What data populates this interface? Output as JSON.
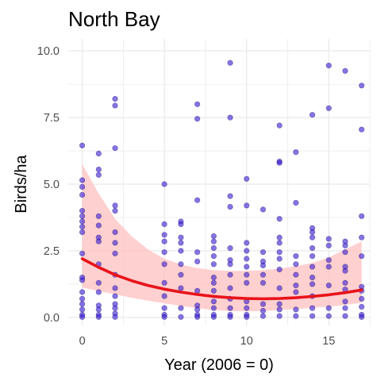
{
  "chart_data": {
    "type": "scatter",
    "title": "North Bay",
    "xlabel": "Year (2006 = 0)",
    "ylabel": "Birds/ha",
    "xlim": [
      -0.85,
      17.5
    ],
    "ylim": [
      -0.3,
      10.45
    ],
    "x_ticks": [
      0,
      5,
      10,
      15
    ],
    "x_tick_labels": [
      "0",
      "5",
      "10",
      "15"
    ],
    "y_ticks": [
      0,
      2.5,
      5,
      7.5,
      10
    ],
    "y_tick_labels": [
      "0.0",
      "2.5",
      "5.0",
      "7.5",
      "10.0"
    ],
    "x_minor": [
      2.5,
      7.5,
      12.5,
      17.5
    ],
    "y_minor": [
      1.25,
      3.75,
      6.25,
      8.75
    ],
    "grid": true,
    "legend": "none",
    "colors": {
      "points": "#3a1fd1",
      "points_edge": "#1a0f7a",
      "trend": "#e8141b",
      "band": "#ffc0c0",
      "grid": "#ebebeb",
      "background": "#ffffff"
    },
    "points": [
      {
        "x": 0,
        "y": 6.45
      },
      {
        "x": 0,
        "y": 5.15
      },
      {
        "x": 0,
        "y": 4.9
      },
      {
        "x": 0,
        "y": 4.6
      },
      {
        "x": 0,
        "y": 4.0
      },
      {
        "x": 0,
        "y": 3.8
      },
      {
        "x": 0,
        "y": 3.6
      },
      {
        "x": 0,
        "y": 3.4
      },
      {
        "x": 0,
        "y": 3.2
      },
      {
        "x": 0,
        "y": 2.4
      },
      {
        "x": 0,
        "y": 1.5
      },
      {
        "x": 0,
        "y": 1.4
      },
      {
        "x": 0,
        "y": 0.95
      },
      {
        "x": 0,
        "y": 0.7
      },
      {
        "x": 0,
        "y": 0.5
      },
      {
        "x": 0,
        "y": 0.3
      },
      {
        "x": 0,
        "y": 0.1
      },
      {
        "x": 0,
        "y": 0.02
      },
      {
        "x": 1,
        "y": 6.15
      },
      {
        "x": 1,
        "y": 5.55
      },
      {
        "x": 1,
        "y": 5.35
      },
      {
        "x": 1,
        "y": 3.8
      },
      {
        "x": 1,
        "y": 3.45
      },
      {
        "x": 1,
        "y": 3.0
      },
      {
        "x": 1,
        "y": 2.85
      },
      {
        "x": 1,
        "y": 2.0
      },
      {
        "x": 1,
        "y": 1.3
      },
      {
        "x": 1,
        "y": 0.95
      },
      {
        "x": 1,
        "y": 0.45
      },
      {
        "x": 1,
        "y": 0.3
      },
      {
        "x": 1,
        "y": 0.1
      },
      {
        "x": 1,
        "y": 0.02
      },
      {
        "x": 2,
        "y": 8.2
      },
      {
        "x": 2,
        "y": 7.95
      },
      {
        "x": 2,
        "y": 6.35
      },
      {
        "x": 2,
        "y": 4.2
      },
      {
        "x": 2,
        "y": 4.0
      },
      {
        "x": 2,
        "y": 3.2
      },
      {
        "x": 2,
        "y": 2.8
      },
      {
        "x": 2,
        "y": 2.4
      },
      {
        "x": 2,
        "y": 1.6
      },
      {
        "x": 2,
        "y": 1.1
      },
      {
        "x": 2,
        "y": 0.8
      },
      {
        "x": 2,
        "y": 0.5
      },
      {
        "x": 2,
        "y": 0.35
      },
      {
        "x": 2,
        "y": 0.15
      },
      {
        "x": 2,
        "y": 0.02
      },
      {
        "x": 5,
        "y": 5.0
      },
      {
        "x": 5,
        "y": 3.5
      },
      {
        "x": 5,
        "y": 3.1
      },
      {
        "x": 5,
        "y": 2.85
      },
      {
        "x": 5,
        "y": 2.45
      },
      {
        "x": 5,
        "y": 2.0
      },
      {
        "x": 5,
        "y": 1.3
      },
      {
        "x": 5,
        "y": 0.8
      },
      {
        "x": 5,
        "y": 0.35
      },
      {
        "x": 5,
        "y": 0.1
      },
      {
        "x": 5,
        "y": 0.02
      },
      {
        "x": 6,
        "y": 3.6
      },
      {
        "x": 6,
        "y": 3.5
      },
      {
        "x": 6,
        "y": 3.0
      },
      {
        "x": 6,
        "y": 2.8
      },
      {
        "x": 6,
        "y": 2.5
      },
      {
        "x": 6,
        "y": 2.0
      },
      {
        "x": 6,
        "y": 1.6
      },
      {
        "x": 6,
        "y": 1.1
      },
      {
        "x": 6,
        "y": 0.35
      },
      {
        "x": 6,
        "y": 0.02
      },
      {
        "x": 7,
        "y": 8.0
      },
      {
        "x": 7,
        "y": 7.45
      },
      {
        "x": 7,
        "y": 4.4
      },
      {
        "x": 7,
        "y": 2.45
      },
      {
        "x": 7,
        "y": 2.1
      },
      {
        "x": 7,
        "y": 1.0
      },
      {
        "x": 7,
        "y": 0.45
      },
      {
        "x": 7,
        "y": 0.3
      },
      {
        "x": 7,
        "y": 0.1
      },
      {
        "x": 7,
        "y": 0.02
      },
      {
        "x": 8,
        "y": 3.05
      },
      {
        "x": 8,
        "y": 2.85
      },
      {
        "x": 8,
        "y": 2.6
      },
      {
        "x": 8,
        "y": 2.3
      },
      {
        "x": 8,
        "y": 2.0
      },
      {
        "x": 8,
        "y": 1.5
      },
      {
        "x": 8,
        "y": 1.3
      },
      {
        "x": 8,
        "y": 1.0
      },
      {
        "x": 8,
        "y": 0.6
      },
      {
        "x": 8,
        "y": 0.35
      },
      {
        "x": 8,
        "y": 0.1
      },
      {
        "x": 8,
        "y": 0.02
      },
      {
        "x": 9,
        "y": 9.55
      },
      {
        "x": 9,
        "y": 7.5
      },
      {
        "x": 9,
        "y": 4.55
      },
      {
        "x": 9,
        "y": 4.15
      },
      {
        "x": 9,
        "y": 2.6
      },
      {
        "x": 9,
        "y": 2.15
      },
      {
        "x": 9,
        "y": 2.0
      },
      {
        "x": 9,
        "y": 1.6
      },
      {
        "x": 9,
        "y": 1.1
      },
      {
        "x": 9,
        "y": 0.7
      },
      {
        "x": 9,
        "y": 0.35
      },
      {
        "x": 9,
        "y": 0.1
      },
      {
        "x": 9,
        "y": 0.02
      },
      {
        "x": 10,
        "y": 5.2
      },
      {
        "x": 10,
        "y": 4.2
      },
      {
        "x": 10,
        "y": 2.8
      },
      {
        "x": 10,
        "y": 2.5
      },
      {
        "x": 10,
        "y": 2.2
      },
      {
        "x": 10,
        "y": 1.9
      },
      {
        "x": 10,
        "y": 1.6
      },
      {
        "x": 10,
        "y": 1.3
      },
      {
        "x": 10,
        "y": 0.6
      },
      {
        "x": 10,
        "y": 0.35
      },
      {
        "x": 10,
        "y": 0.1
      },
      {
        "x": 10,
        "y": 0.02
      },
      {
        "x": 11,
        "y": 4.05
      },
      {
        "x": 11,
        "y": 2.45
      },
      {
        "x": 11,
        "y": 2.1
      },
      {
        "x": 11,
        "y": 1.95
      },
      {
        "x": 11,
        "y": 1.6
      },
      {
        "x": 11,
        "y": 1.3
      },
      {
        "x": 11,
        "y": 0.5
      },
      {
        "x": 11,
        "y": 0.25
      },
      {
        "x": 11,
        "y": 0.05
      },
      {
        "x": 12,
        "y": 7.2
      },
      {
        "x": 12,
        "y": 5.85
      },
      {
        "x": 12,
        "y": 5.8
      },
      {
        "x": 12,
        "y": 3.7
      },
      {
        "x": 12,
        "y": 3.0
      },
      {
        "x": 12,
        "y": 2.8
      },
      {
        "x": 12,
        "y": 2.45
      },
      {
        "x": 12,
        "y": 2.2
      },
      {
        "x": 12,
        "y": 1.8
      },
      {
        "x": 12,
        "y": 1.1
      },
      {
        "x": 12,
        "y": 0.5
      },
      {
        "x": 12,
        "y": 0.3
      },
      {
        "x": 12,
        "y": 0.05
      },
      {
        "x": 13,
        "y": 6.2
      },
      {
        "x": 13,
        "y": 4.3
      },
      {
        "x": 13,
        "y": 2.3
      },
      {
        "x": 13,
        "y": 2.0
      },
      {
        "x": 13,
        "y": 1.6
      },
      {
        "x": 13,
        "y": 1.2
      },
      {
        "x": 13,
        "y": 0.95
      },
      {
        "x": 13,
        "y": 0.3
      },
      {
        "x": 13,
        "y": 0.05
      },
      {
        "x": 14,
        "y": 7.6
      },
      {
        "x": 14,
        "y": 3.35
      },
      {
        "x": 14,
        "y": 3.2
      },
      {
        "x": 14,
        "y": 3.0
      },
      {
        "x": 14,
        "y": 2.6
      },
      {
        "x": 14,
        "y": 2.3
      },
      {
        "x": 14,
        "y": 1.9
      },
      {
        "x": 14,
        "y": 1.5
      },
      {
        "x": 14,
        "y": 1.25
      },
      {
        "x": 14,
        "y": 0.8
      },
      {
        "x": 14,
        "y": 0.35
      },
      {
        "x": 14,
        "y": 0.05
      },
      {
        "x": 15,
        "y": 9.45
      },
      {
        "x": 15,
        "y": 7.85
      },
      {
        "x": 15,
        "y": 2.95
      },
      {
        "x": 15,
        "y": 2.7
      },
      {
        "x": 15,
        "y": 2.15
      },
      {
        "x": 15,
        "y": 1.9
      },
      {
        "x": 15,
        "y": 1.2
      },
      {
        "x": 15,
        "y": 0.35
      },
      {
        "x": 15,
        "y": 0.05
      },
      {
        "x": 16,
        "y": 9.25
      },
      {
        "x": 16,
        "y": 2.85
      },
      {
        "x": 16,
        "y": 2.7
      },
      {
        "x": 16,
        "y": 2.45
      },
      {
        "x": 16,
        "y": 1.9
      },
      {
        "x": 16,
        "y": 1.75
      },
      {
        "x": 16,
        "y": 1.3
      },
      {
        "x": 16,
        "y": 1.05
      },
      {
        "x": 16,
        "y": 0.6
      },
      {
        "x": 16,
        "y": 0.35
      },
      {
        "x": 16,
        "y": 0.05
      },
      {
        "x": 17,
        "y": 8.7
      },
      {
        "x": 17,
        "y": 7.05
      },
      {
        "x": 17,
        "y": 3.8
      },
      {
        "x": 17,
        "y": 3.0
      },
      {
        "x": 17,
        "y": 2.3
      },
      {
        "x": 17,
        "y": 1.15
      },
      {
        "x": 17,
        "y": 1.0
      },
      {
        "x": 17,
        "y": 0.7
      },
      {
        "x": 17,
        "y": 0.4
      },
      {
        "x": 17,
        "y": 0.1
      },
      {
        "x": 17,
        "y": 0.02
      }
    ],
    "trend": {
      "x": [
        0,
        1,
        2,
        3,
        4,
        5,
        6,
        7,
        8,
        9,
        10,
        11,
        12,
        13,
        14,
        15,
        16,
        17
      ],
      "y": [
        2.2,
        1.88,
        1.6,
        1.38,
        1.2,
        1.06,
        0.95,
        0.86,
        0.79,
        0.74,
        0.71,
        0.7,
        0.71,
        0.74,
        0.79,
        0.85,
        0.93,
        1.03
      ],
      "lower": [
        1.12,
        0.99,
        0.87,
        0.74,
        0.63,
        0.53,
        0.43,
        0.35,
        0.28,
        0.24,
        0.23,
        0.24,
        0.28,
        0.31,
        0.36,
        0.4,
        0.47,
        0.55
      ],
      "upper": [
        5.75,
        4.65,
        3.7,
        3.05,
        2.55,
        2.2,
        1.98,
        1.85,
        1.78,
        1.75,
        1.75,
        1.78,
        1.83,
        1.92,
        2.05,
        2.25,
        2.55,
        2.85
      ]
    }
  }
}
